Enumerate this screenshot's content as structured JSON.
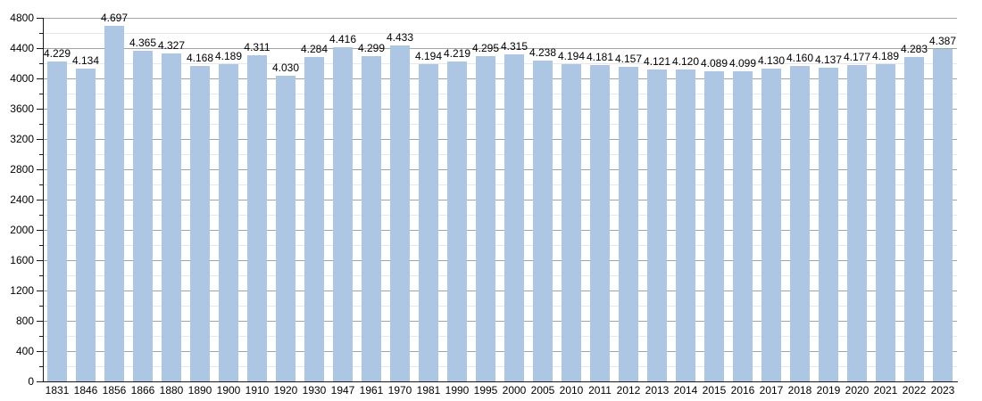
{
  "chart_data": {
    "type": "bar",
    "title": "",
    "xlabel": "",
    "ylabel": "",
    "categories": [
      "1831",
      "1846",
      "1856",
      "1866",
      "1880",
      "1890",
      "1900",
      "1910",
      "1920",
      "1930",
      "1947",
      "1961",
      "1970",
      "1981",
      "1990",
      "1995",
      "2000",
      "2005",
      "2010",
      "2011",
      "2012",
      "2013",
      "2014",
      "2015",
      "2016",
      "2017",
      "2018",
      "2019",
      "2020",
      "2021",
      "2022",
      "2023"
    ],
    "values": [
      4229,
      4134,
      4697,
      4365,
      4327,
      4168,
      4189,
      4311,
      4030,
      4284,
      4416,
      4299,
      4433,
      4194,
      4219,
      4295,
      4315,
      4238,
      4194,
      4181,
      4157,
      4121,
      4120,
      4089,
      4099,
      4130,
      4160,
      4137,
      4177,
      4189,
      4283,
      4387
    ],
    "value_labels": [
      "4.229",
      "4.134",
      "4.697",
      "4.365",
      "4.327",
      "4.168",
      "4.189",
      "4.311",
      "4.030",
      "4.284",
      "4.416",
      "4.299",
      "4.433",
      "4.194",
      "4.219",
      "4.295",
      "4.315",
      "4.238",
      "4.194",
      "4.181",
      "4.157",
      "4.121",
      "4.120",
      "4.089",
      "4.099",
      "4.130",
      "4.160",
      "4.137",
      "4.177",
      "4.189",
      "4.283",
      "4.387"
    ],
    "ylim": [
      0,
      4800
    ],
    "y_major_step": 400,
    "y_minor_step": 200,
    "y_tick_labels": [
      "0",
      "400",
      "800",
      "1200",
      "1600",
      "2000",
      "2400",
      "2800",
      "3200",
      "3600",
      "4000",
      "4400",
      "4800"
    ],
    "grid": true,
    "legend": "none",
    "colors": {
      "bar_fill": "#adc6e3",
      "grid_major": "#a3a3a3",
      "grid_minor": "#e7e7e7",
      "axis": "#1a1a1a",
      "text": "#000000",
      "background": "#ffffff"
    }
  }
}
